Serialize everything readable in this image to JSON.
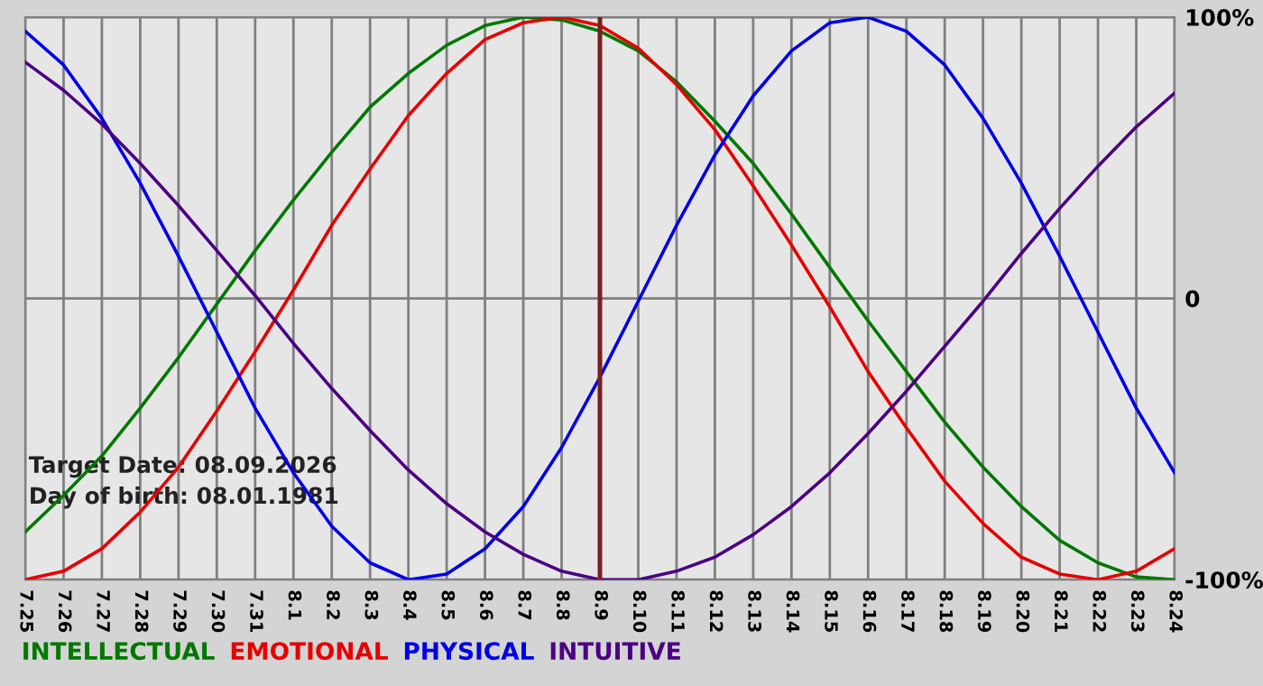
{
  "chart_data": {
    "type": "line",
    "categories": [
      "7.25",
      "7.26",
      "7.27",
      "7.28",
      "7.29",
      "7.30",
      "7.31",
      "8.1",
      "8.2",
      "8.3",
      "8.4",
      "8.5",
      "8.6",
      "8.7",
      "8.8",
      "8.9",
      "8.10",
      "8.11",
      "8.12",
      "8.13",
      "8.14",
      "8.15",
      "8.16",
      "8.17",
      "8.18",
      "8.19",
      "8.20",
      "8.21",
      "8.22",
      "8.23",
      "8.24"
    ],
    "series": [
      {
        "name": "INTELLECTUAL",
        "color": "#007800",
        "values": [
          -83,
          -70,
          -56,
          -39,
          -21,
          -2,
          17,
          35,
          52,
          68,
          80,
          90,
          97,
          100,
          99,
          95,
          88,
          77,
          63,
          48,
          30,
          11,
          -8,
          -26,
          -44,
          -60,
          -74,
          -86,
          -94,
          -99,
          -100
        ]
      },
      {
        "name": "EMOTIONAL",
        "color": "#e60000",
        "values": [
          -100,
          -97,
          -89,
          -76,
          -60,
          -40,
          -19,
          3,
          26,
          46,
          65,
          80,
          92,
          98,
          100,
          97,
          89,
          76,
          60,
          40,
          19,
          -3,
          -26,
          -46,
          -65,
          -80,
          -92,
          -98,
          -100,
          -97,
          -89
        ]
      },
      {
        "name": "PHYSICAL",
        "color": "#0000e6",
        "values": [
          95,
          83,
          64,
          41,
          15,
          -12,
          -39,
          -62,
          -81,
          -94,
          -100,
          -98,
          -89,
          -74,
          -53,
          -28,
          -1,
          26,
          51,
          72,
          88,
          98,
          100,
          95,
          83,
          64,
          41,
          15,
          -12,
          -39,
          -62
        ]
      },
      {
        "name": "INTUITIVE",
        "color": "#4b0082",
        "values": [
          84,
          74,
          62,
          48,
          33,
          17,
          1,
          -16,
          -32,
          -47,
          -61,
          -73,
          -83,
          -91,
          -97,
          -100,
          -100,
          -97,
          -92,
          -84,
          -74,
          -62,
          -48,
          -33,
          -17,
          -1,
          16,
          32,
          47,
          61,
          73
        ]
      }
    ],
    "ylim": [
      -100,
      100
    ],
    "yticks": [
      {
        "value": 100,
        "label": "100%"
      },
      0,
      {
        "value": -100,
        "label": "-100%"
      }
    ],
    "grid": true,
    "legend": "bottom left",
    "line_style": "solid",
    "ref_lines": [
      {
        "axis": "x",
        "value": "8.9",
        "color": "#7a1f1f"
      }
    ],
    "annotations": [
      "Target Date: 08.09.2026",
      "Day of birth: 08.01.1981"
    ]
  }
}
